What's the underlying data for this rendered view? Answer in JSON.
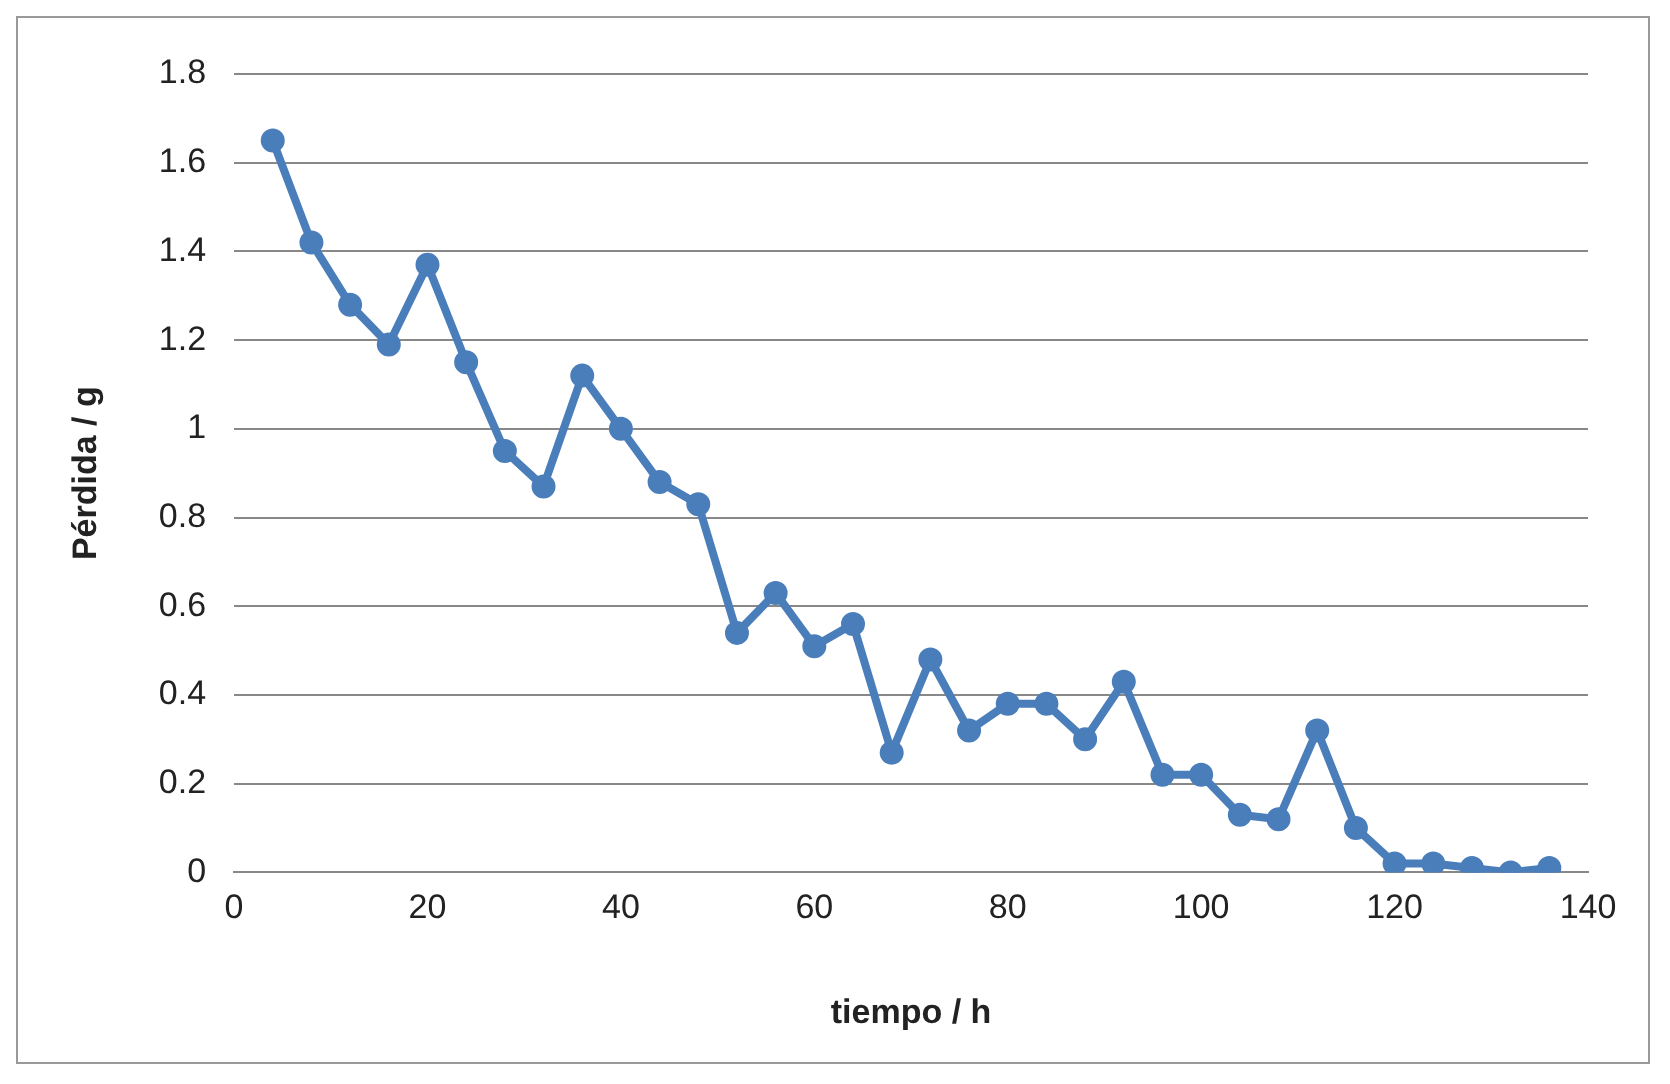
{
  "chart_data": {
    "type": "line",
    "xlabel": "tiempo / h",
    "ylabel": "Pérdida / g",
    "x": [
      4,
      8,
      12,
      16,
      20,
      24,
      28,
      32,
      36,
      40,
      44,
      48,
      52,
      56,
      60,
      64,
      68,
      72,
      76,
      80,
      84,
      88,
      92,
      96,
      100,
      104,
      108,
      112,
      116,
      120,
      124,
      128,
      132,
      136
    ],
    "series": [
      {
        "color": "#4a7ebb",
        "values": [
          1.65,
          1.42,
          1.28,
          1.19,
          1.37,
          1.15,
          0.95,
          0.87,
          1.12,
          1.0,
          0.88,
          0.83,
          0.54,
          0.63,
          0.51,
          0.56,
          0.27,
          0.48,
          0.32,
          0.38,
          0.38,
          0.3,
          0.43,
          0.22,
          0.22,
          0.13,
          0.12,
          0.32,
          0.1,
          0.02,
          0.02,
          0.01,
          0.0,
          0.01
        ]
      }
    ],
    "xlim": [
      0,
      140
    ],
    "xticks": [
      0,
      20,
      40,
      60,
      80,
      100,
      120,
      140
    ],
    "ylim": [
      0,
      1.8
    ],
    "yticks": [
      0,
      0.2,
      0.4,
      0.6,
      0.8,
      1,
      1.2,
      1.4,
      1.6,
      1.8
    ],
    "grid": "y",
    "legend": false,
    "marker": "circle",
    "line_style": "solid"
  }
}
